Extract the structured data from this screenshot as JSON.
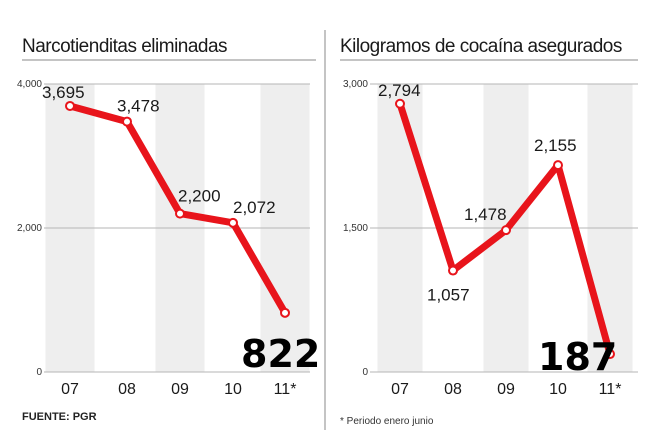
{
  "source_text": "FUENTE: PGR",
  "footnote": "* Periodo enero junio",
  "colors": {
    "line": "#e8141b",
    "band": "#eeeeee",
    "grid": "#b5b5b5"
  },
  "chart_data": [
    {
      "type": "line",
      "title": "Narcotienditas eliminadas",
      "categories": [
        "07",
        "08",
        "09",
        "10",
        "11*"
      ],
      "values": [
        3695,
        3478,
        2200,
        2072,
        822
      ],
      "value_labels": [
        "3,695",
        "3,478",
        "2,200",
        "2,072",
        "822"
      ],
      "highlight_last": true,
      "yticks": [
        0,
        2000,
        4000
      ],
      "ytick_labels": [
        "0",
        "2,000",
        "4,000"
      ],
      "ylim": [
        0,
        4000
      ],
      "grid": true
    },
    {
      "type": "line",
      "title": "Kilogramos de cocaína asegurados",
      "categories": [
        "07",
        "08",
        "09",
        "10",
        "11*"
      ],
      "values": [
        2794,
        1057,
        1478,
        2155,
        187
      ],
      "value_labels": [
        "2,794",
        "1,057",
        "1,478",
        "2,155",
        "187"
      ],
      "highlight_last": true,
      "yticks": [
        0,
        1500,
        3000
      ],
      "ytick_labels": [
        "0",
        "1,500",
        "3,000"
      ],
      "ylim": [
        0,
        3000
      ],
      "grid": true
    }
  ]
}
